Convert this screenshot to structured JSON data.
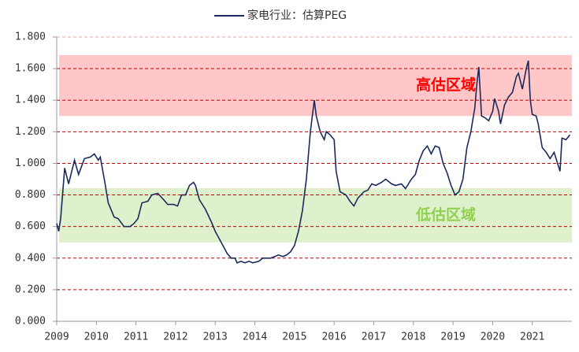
{
  "chart_data": {
    "type": "line",
    "series": [
      {
        "name": "家电行业：估算PEG",
        "color": "#1a2a5e",
        "x": [
          2009.0,
          2009.05,
          2009.1,
          2009.2,
          2009.3,
          2009.45,
          2009.55,
          2009.7,
          2009.85,
          2009.95,
          2010.05,
          2010.1,
          2010.2,
          2010.3,
          2010.45,
          2010.55,
          2010.7,
          2010.85,
          2010.95,
          2011.05,
          2011.15,
          2011.3,
          2011.4,
          2011.55,
          2011.7,
          2011.8,
          2011.95,
          2012.05,
          2012.15,
          2012.25,
          2012.35,
          2012.45,
          2012.5,
          2012.6,
          2012.75,
          2012.9,
          2013.0,
          2013.15,
          2013.3,
          2013.4,
          2013.5,
          2013.55,
          2013.65,
          2013.75,
          2013.85,
          2013.95,
          2014.1,
          2014.2,
          2014.4,
          2014.5,
          2014.6,
          2014.7,
          2014.8,
          2014.9,
          2015.0,
          2015.1,
          2015.2,
          2015.3,
          2015.4,
          2015.5,
          2015.55,
          2015.65,
          2015.75,
          2015.8,
          2015.9,
          2016.0,
          2016.05,
          2016.15,
          2016.3,
          2016.4,
          2016.5,
          2016.6,
          2016.75,
          2016.85,
          2016.95,
          2017.05,
          2017.2,
          2017.3,
          2017.45,
          2017.55,
          2017.7,
          2017.8,
          2017.95,
          2018.05,
          2018.15,
          2018.25,
          2018.35,
          2018.45,
          2018.55,
          2018.65,
          2018.75,
          2018.85,
          2018.95,
          2019.0,
          2019.05,
          2019.15,
          2019.25,
          2019.35,
          2019.45,
          2019.55,
          2019.6,
          2019.65,
          2019.72,
          2019.8,
          2019.9,
          2020.0,
          2020.05,
          2020.15,
          2020.2,
          2020.3,
          2020.4,
          2020.5,
          2020.6,
          2020.65,
          2020.75,
          2020.85,
          2020.9,
          2020.95,
          2021.0,
          2021.1,
          2021.15,
          2021.25,
          2021.35,
          2021.45,
          2021.55,
          2021.7,
          2021.75,
          2021.85,
          2021.95
        ],
        "values": [
          0.62,
          0.57,
          0.65,
          0.97,
          0.87,
          1.02,
          0.93,
          1.03,
          1.04,
          1.06,
          1.02,
          1.04,
          0.9,
          0.75,
          0.66,
          0.65,
          0.6,
          0.6,
          0.62,
          0.65,
          0.75,
          0.76,
          0.8,
          0.81,
          0.77,
          0.74,
          0.74,
          0.73,
          0.8,
          0.8,
          0.86,
          0.88,
          0.86,
          0.77,
          0.71,
          0.63,
          0.57,
          0.5,
          0.43,
          0.4,
          0.4,
          0.37,
          0.38,
          0.37,
          0.38,
          0.37,
          0.38,
          0.4,
          0.4,
          0.41,
          0.42,
          0.41,
          0.42,
          0.44,
          0.48,
          0.57,
          0.7,
          0.9,
          1.2,
          1.4,
          1.3,
          1.2,
          1.15,
          1.2,
          1.18,
          1.15,
          0.95,
          0.82,
          0.8,
          0.76,
          0.73,
          0.78,
          0.82,
          0.83,
          0.87,
          0.86,
          0.88,
          0.9,
          0.87,
          0.86,
          0.87,
          0.84,
          0.9,
          0.93,
          1.02,
          1.08,
          1.11,
          1.06,
          1.11,
          1.1,
          1.0,
          0.94,
          0.86,
          0.83,
          0.8,
          0.82,
          0.9,
          1.1,
          1.2,
          1.35,
          1.5,
          1.61,
          1.3,
          1.29,
          1.27,
          1.33,
          1.41,
          1.33,
          1.25,
          1.37,
          1.42,
          1.45,
          1.55,
          1.57,
          1.47,
          1.6,
          1.65,
          1.4,
          1.31,
          1.3,
          1.25,
          1.1,
          1.07,
          1.03,
          1.07,
          0.95,
          1.16,
          1.15,
          1.18
        ]
      }
    ],
    "bands": [
      {
        "label": "高估区域",
        "range": [
          1.3,
          1.686
        ],
        "color": "#ffc7c7",
        "text_color": "#ff0000"
      },
      {
        "label": "低估区域",
        "range": [
          0.5,
          0.843
        ],
        "color": "#dff0cc",
        "text_color": "#8fd14f"
      }
    ],
    "xlim": [
      2009,
      2022
    ],
    "xticks": [
      2009,
      2010,
      2011,
      2012,
      2013,
      2014,
      2015,
      2016,
      2017,
      2018,
      2019,
      2020,
      2021
    ],
    "ylim": [
      0,
      1.8
    ],
    "yticks": [
      {
        "value": 0,
        "label": "0.000"
      },
      {
        "value": 0.2,
        "label": "0.200"
      },
      {
        "value": 0.4,
        "label": "0.400"
      },
      {
        "value": 0.6,
        "label": "0.600"
      },
      {
        "value": 0.8,
        "label": "0.800"
      },
      {
        "value": 1.0,
        "label": "1.000"
      },
      {
        "value": 1.2,
        "label": "1.200"
      },
      {
        "value": 1.4,
        "label": "1.400"
      },
      {
        "value": 1.6,
        "label": "1.600"
      },
      {
        "value": 1.8,
        "label": "1.800"
      }
    ],
    "grid": true,
    "grid_color": "#c00000",
    "legend": "top"
  }
}
